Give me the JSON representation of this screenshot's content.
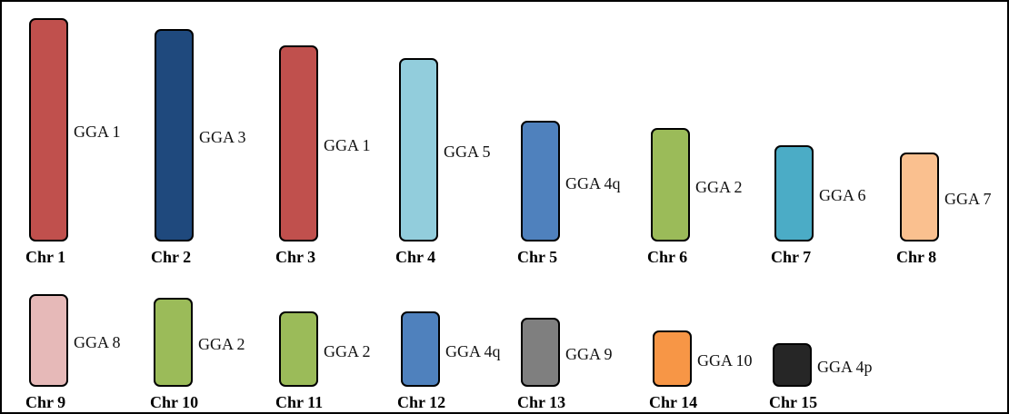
{
  "colors": {
    "red": "#c0504d",
    "navy": "#1f497d",
    "lightblue": "#92cddc",
    "blue": "#4f81bd",
    "green": "#9bbb59",
    "teal": "#4bacc6",
    "peach": "#fac08f",
    "pink": "#e6b9b8",
    "gray": "#7f7f7f",
    "orange": "#f79646",
    "black": "#262626"
  },
  "rows": [
    {
      "chromosomes": [
        {
          "name": "Chr 1",
          "gga": "GGA 1",
          "color": "#c0504d",
          "length": 10
        },
        {
          "name": "Chr 2",
          "gga": "GGA 3",
          "color": "#1f497d",
          "length": 9.5
        },
        {
          "name": "Chr 3",
          "gga": "GGA 1",
          "color": "#c0504d",
          "length": 8.8
        },
        {
          "name": "Chr 4",
          "gga": "GGA 5",
          "color": "#92cddc",
          "length": 8.2
        },
        {
          "name": "Chr 5",
          "gga": "GGA 4q",
          "color": "#4f81bd",
          "length": 5.4
        },
        {
          "name": "Chr 6",
          "gga": "GGA 2",
          "color": "#9bbb59",
          "length": 5.1
        },
        {
          "name": "Chr 7",
          "gga": "GGA 6",
          "color": "#4bacc6",
          "length": 4.3
        },
        {
          "name": "Chr 8",
          "gga": "GGA 7",
          "color": "#fac08f",
          "length": 4.0
        }
      ]
    },
    {
      "chromosomes": [
        {
          "name": "Chr 9",
          "gga": "GGA 8",
          "color": "#e6b9b8",
          "length": 4.3
        },
        {
          "name": "Chr 10",
          "gga": "GGA 2",
          "color": "#9bbb59",
          "length": 4.1
        },
        {
          "name": "Chr 11",
          "gga": "GGA 2",
          "color": "#9bbb59",
          "length": 3.5
        },
        {
          "name": "Chr 12",
          "gga": "GGA 4q",
          "color": "#4f81bd",
          "length": 3.5
        },
        {
          "name": "Chr 13",
          "gga": "GGA 9",
          "color": "#7f7f7f",
          "length": 3.2
        },
        {
          "name": "Chr 14",
          "gga": "GGA 10",
          "color": "#f79646",
          "length": 2.6
        },
        {
          "name": "Chr 15",
          "gga": "GGA 4p",
          "color": "#262626",
          "length": 2.0
        }
      ]
    }
  ]
}
